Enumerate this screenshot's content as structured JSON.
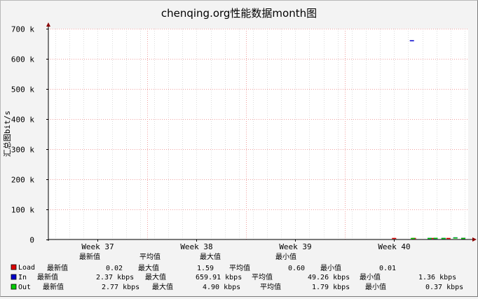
{
  "chart_data": {
    "type": "line",
    "title": "chenqing.org性能数据month图",
    "ylabel": "汇总图bit/s",
    "ylim": [
      0,
      700000
    ],
    "yticks": [
      {
        "value": 0,
        "label": "0"
      },
      {
        "value": 100000,
        "label": "100 k"
      },
      {
        "value": 200000,
        "label": "200 k"
      },
      {
        "value": 300000,
        "label": "300 k"
      },
      {
        "value": 400000,
        "label": "400 k"
      },
      {
        "value": 500000,
        "label": "500 k"
      },
      {
        "value": 600000,
        "label": "600 k"
      },
      {
        "value": 700000,
        "label": "700 k"
      }
    ],
    "xrange": [
      36.5,
      40.75
    ],
    "xticks": [
      {
        "value": 37,
        "label": "Week 37"
      },
      {
        "value": 38,
        "label": "Week 38"
      },
      {
        "value": 39,
        "label": "Week 39"
      },
      {
        "value": 40,
        "label": "Week 40"
      }
    ],
    "grid": true,
    "series": [
      {
        "name": "Load",
        "color": "#dd0000",
        "points": [
          [
            40.0,
            1
          ],
          [
            40.2,
            1
          ],
          [
            40.4,
            1
          ],
          [
            40.55,
            1
          ],
          [
            40.7,
            1
          ]
        ]
      },
      {
        "name": "In",
        "color": "#0000cc",
        "points": [
          [
            40.18,
            660000
          ],
          [
            40.36,
            2500
          ],
          [
            40.42,
            3000
          ],
          [
            40.5,
            2000
          ],
          [
            40.62,
            5500
          ],
          [
            40.7,
            2000
          ]
        ]
      },
      {
        "name": "Out",
        "color": "#00cc00",
        "points": [
          [
            40.19,
            3000
          ],
          [
            40.36,
            3500
          ],
          [
            40.42,
            4000
          ],
          [
            40.5,
            3000
          ],
          [
            40.62,
            4900
          ],
          [
            40.7,
            3000
          ]
        ]
      }
    ],
    "legend_header": {
      "last": "最新值",
      "avg": "平均值",
      "max": "最大值",
      "min": "最小值"
    },
    "legend": [
      {
        "name": "Load",
        "color": "#dd0000",
        "l1": "最新值",
        "v1": "0.02",
        "l2": "最大值",
        "v2": "1.59",
        "l3": "平均值",
        "v3": "0.60",
        "l4": "最小值",
        "v4": "0.01"
      },
      {
        "name": "In",
        "color": "#0000cc",
        "l1": "最新值",
        "v1": "2.37 kbps",
        "l2": "最大值",
        "v2": "659.91 kbps",
        "l3": "平均值",
        "v3": "49.26 kbps",
        "l4": "最小值",
        "v4": "1.36 kbps"
      },
      {
        "name": "Out",
        "color": "#00cc00",
        "l1": "最新值",
        "v1": "2.77 kbps",
        "l2": "最大值",
        "v2": "4.90 kbps",
        "l3": "平均值",
        "v3": "1.79 kbps",
        "l4": "最小值",
        "v4": "0.37 kbps"
      }
    ]
  }
}
